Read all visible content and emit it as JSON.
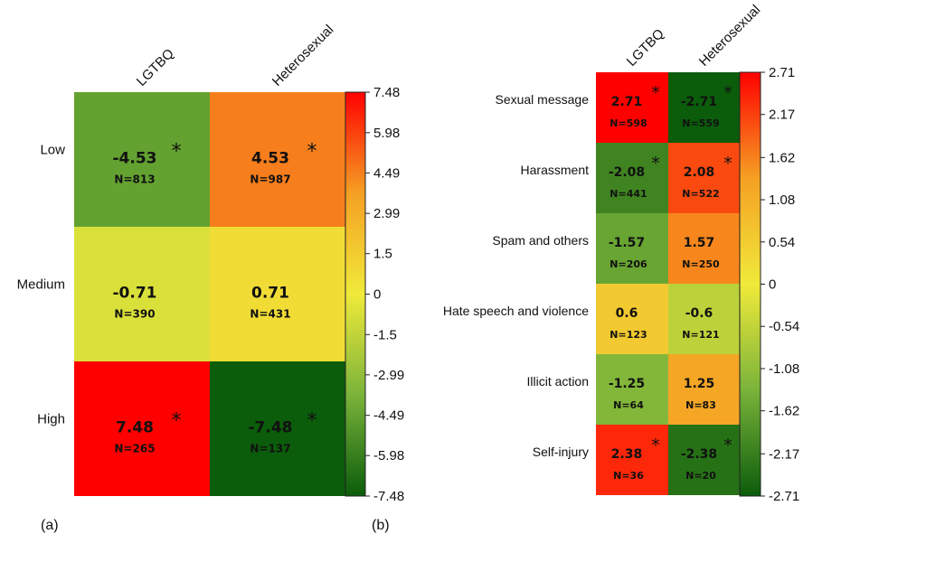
{
  "chart_data": [
    {
      "type": "heatmap",
      "panel_label": "(a)",
      "columns": [
        "LGTBQ",
        "Heterosexual"
      ],
      "rows": [
        "Low",
        "Medium",
        "High"
      ],
      "values": [
        [
          -4.53,
          4.53
        ],
        [
          -0.71,
          0.71
        ],
        [
          7.48,
          -7.48
        ]
      ],
      "value_labels": [
        [
          "-4.53",
          "4.53"
        ],
        [
          "-0.71",
          "0.71"
        ],
        [
          "7.48",
          "-7.48"
        ]
      ],
      "n_labels": [
        [
          "N=813",
          "N=987"
        ],
        [
          "N=390",
          "N=431"
        ],
        [
          "N=265",
          "N=137"
        ]
      ],
      "significant": [
        [
          true,
          true
        ],
        [
          false,
          false
        ],
        [
          true,
          true
        ]
      ],
      "colorbar": {
        "min": -7.48,
        "max": 7.48,
        "ticks": [
          7.48,
          5.98,
          4.49,
          2.99,
          1.5,
          0,
          -1.5,
          -2.99,
          -4.49,
          -5.98,
          -7.48
        ],
        "tick_labels": [
          "7.48",
          "5.98",
          "4.49",
          "2.99",
          "1.5",
          "0",
          "-1.5",
          "-2.99",
          "-4.49",
          "-5.98",
          "-7.48"
        ]
      }
    },
    {
      "type": "heatmap",
      "panel_label": "(b)",
      "columns": [
        "LGTBQ",
        "Heterosexual"
      ],
      "rows": [
        "Sexual message",
        "Harassment",
        "Spam and others",
        "Hate speech and violence",
        "Illicit action",
        "Self-injury"
      ],
      "values": [
        [
          2.71,
          -2.71
        ],
        [
          -2.08,
          2.08
        ],
        [
          -1.57,
          1.57
        ],
        [
          0.6,
          -0.6
        ],
        [
          -1.25,
          1.25
        ],
        [
          2.38,
          -2.38
        ]
      ],
      "value_labels": [
        [
          "2.71",
          "-2.71"
        ],
        [
          "-2.08",
          "2.08"
        ],
        [
          "-1.57",
          "1.57"
        ],
        [
          "0.6",
          "-0.6"
        ],
        [
          "-1.25",
          "1.25"
        ],
        [
          "2.38",
          "-2.38"
        ]
      ],
      "n_labels": [
        [
          "N=598",
          "N=559"
        ],
        [
          "N=441",
          "N=522"
        ],
        [
          "N=206",
          "N=250"
        ],
        [
          "N=123",
          "N=121"
        ],
        [
          "N=64",
          "N=83"
        ],
        [
          "N=36",
          "N=20"
        ]
      ],
      "significant": [
        [
          true,
          true
        ],
        [
          true,
          true
        ],
        [
          false,
          false
        ],
        [
          false,
          false
        ],
        [
          false,
          false
        ],
        [
          true,
          true
        ]
      ],
      "colorbar": {
        "min": -2.71,
        "max": 2.71,
        "ticks": [
          2.71,
          2.17,
          1.62,
          1.08,
          0.54,
          0,
          -0.54,
          -1.08,
          -1.62,
          -2.17,
          -2.71
        ],
        "tick_labels": [
          "2.71",
          "2.17",
          "1.62",
          "1.08",
          "0.54",
          "0",
          "-0.54",
          "-1.08",
          "-1.62",
          "-2.17",
          "-2.71"
        ]
      }
    }
  ],
  "significance_marker": "*",
  "colors": {
    "low": "#0b5c0b",
    "mid_low": "#7ab33a",
    "mid": "#f0ea3a",
    "mid_high": "#f5a023",
    "high": "#ff0000",
    "text": "#111111",
    "background": "#ffffff"
  }
}
